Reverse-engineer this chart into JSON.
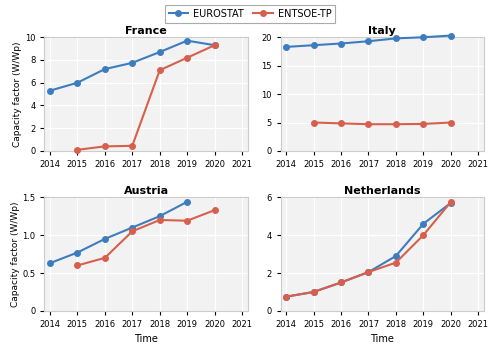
{
  "france": {
    "years": [
      2014,
      2015,
      2016,
      2017,
      2018,
      2019,
      2020
    ],
    "eurostat": [
      5.3,
      6.0,
      7.2,
      7.75,
      8.7,
      9.7,
      9.3
    ],
    "entsoe": [
      null,
      0.1,
      0.4,
      0.45,
      7.1,
      8.2,
      9.3
    ],
    "title": "France",
    "ylim": [
      0,
      10
    ],
    "yticks": [
      0,
      2,
      4,
      6,
      8,
      10
    ],
    "ylabel": "Capacity factor (W/Wp)"
  },
  "italy": {
    "years": [
      2014,
      2015,
      2016,
      2017,
      2018,
      2019,
      2020
    ],
    "eurostat": [
      18.3,
      18.6,
      18.9,
      19.3,
      19.8,
      20.0,
      20.3
    ],
    "entsoe": [
      null,
      5.0,
      4.85,
      4.7,
      4.7,
      4.75,
      5.0
    ],
    "title": "Italy",
    "ylim": [
      0,
      20
    ],
    "yticks": [
      0,
      5,
      10,
      15,
      20
    ],
    "ylabel": ""
  },
  "austria": {
    "years": [
      2014,
      2015,
      2016,
      2017,
      2018,
      2019,
      2020
    ],
    "eurostat": [
      0.63,
      0.77,
      0.95,
      1.1,
      1.25,
      1.44,
      null
    ],
    "entsoe": [
      null,
      0.6,
      0.7,
      1.05,
      1.2,
      1.19,
      1.33
    ],
    "title": "Austria",
    "ylim": [
      0,
      1.5
    ],
    "yticks": [
      0,
      0.5,
      1.0,
      1.5
    ],
    "ylabel": "Capacity factor (W/Wp)"
  },
  "netherlands": {
    "years": [
      2014,
      2015,
      2016,
      2017,
      2018,
      2019,
      2020
    ],
    "eurostat": [
      0.75,
      1.0,
      1.5,
      2.05,
      2.9,
      4.6,
      5.7
    ],
    "entsoe": [
      0.75,
      1.0,
      1.5,
      2.05,
      2.55,
      4.0,
      5.75
    ],
    "title": "Netherlands",
    "ylim": [
      0,
      6
    ],
    "yticks": [
      0,
      2,
      4,
      6
    ],
    "ylabel": ""
  },
  "legend_eurostat": "EUROSTAT",
  "legend_entsoe": "ENTSOE-TP",
  "color_eurostat": "#3d7dbf",
  "color_entsoe": "#d6604d",
  "xlim": [
    2013.8,
    2021.2
  ],
  "xticks": [
    2014,
    2015,
    2016,
    2017,
    2018,
    2019,
    2020,
    2021
  ],
  "marker": "o",
  "linewidth": 1.5,
  "markersize": 4,
  "bg_color": "#f2f2f2",
  "grid_color": "#ffffff",
  "spine_color": "#cccccc"
}
